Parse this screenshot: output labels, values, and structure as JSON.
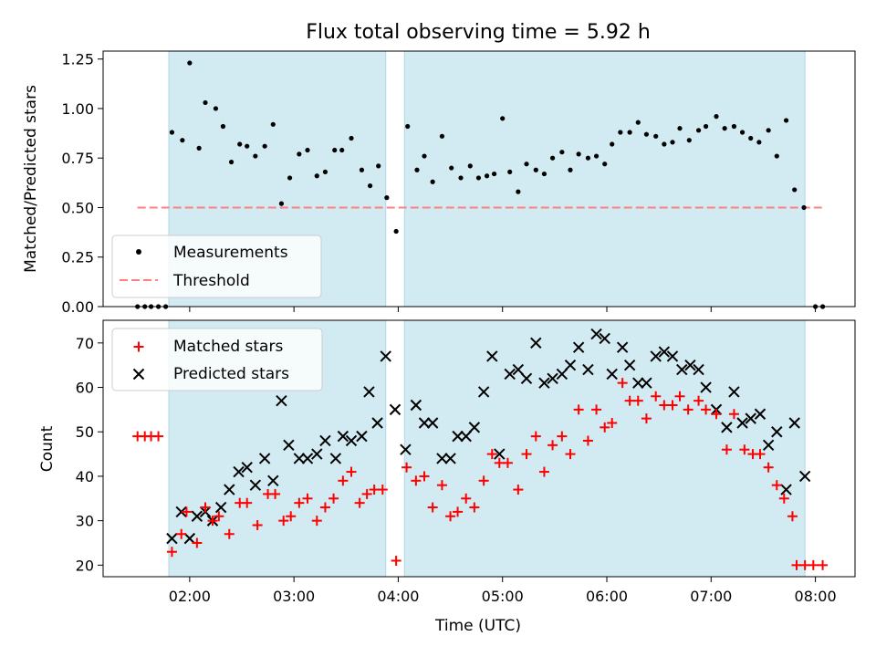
{
  "title": "Flux total observing time = 5.92 h",
  "colors": {
    "span": "#add8e6",
    "measurement": "#000000",
    "threshold": "#ff7f7f",
    "matched": "#ff0000",
    "predicted": "#000000"
  },
  "chart_data": [
    {
      "type": "scatter",
      "ylabel": "Matched/Predicted stars",
      "xlim": [
        1.17,
        8.38
      ],
      "ylim": [
        0,
        1.29
      ],
      "yticks": [
        0,
        0.25,
        0.5,
        0.75,
        1.0,
        1.25
      ],
      "ytick_labels": [
        "0.00",
        "0.25",
        "0.50",
        "0.75",
        "1.00",
        "1.25"
      ],
      "legend": "lower-left",
      "shaded_spans": [
        [
          1.8,
          3.88
        ],
        [
          4.06,
          7.9
        ]
      ],
      "threshold": {
        "name": "Threshold",
        "y": 0.5,
        "x": [
          1.5,
          8.08
        ]
      },
      "series": [
        {
          "name": "Measurements",
          "x": [
            1.5,
            1.57,
            1.63,
            1.7,
            1.77,
            1.83,
            1.93,
            2.0,
            2.09,
            2.15,
            2.25,
            2.32,
            2.4,
            2.48,
            2.55,
            2.63,
            2.72,
            2.8,
            2.88,
            2.96,
            3.05,
            3.13,
            3.22,
            3.3,
            3.39,
            3.46,
            3.55,
            3.65,
            3.73,
            3.81,
            3.89,
            3.98,
            4.09,
            4.18,
            4.25,
            4.33,
            4.42,
            4.51,
            4.6,
            4.69,
            4.77,
            4.85,
            4.92,
            5.0,
            5.07,
            5.15,
            5.23,
            5.32,
            5.4,
            5.48,
            5.57,
            5.65,
            5.73,
            5.82,
            5.9,
            5.98,
            6.05,
            6.13,
            6.22,
            6.3,
            6.38,
            6.47,
            6.55,
            6.63,
            6.7,
            6.79,
            6.88,
            6.95,
            7.05,
            7.13,
            7.22,
            7.3,
            7.38,
            7.46,
            7.55,
            7.63,
            7.72,
            7.8,
            7.89,
            8.0,
            8.07
          ],
          "y": [
            0,
            0,
            0,
            0,
            0,
            0.88,
            0.84,
            1.23,
            0.8,
            1.03,
            1.0,
            0.91,
            0.73,
            0.82,
            0.81,
            0.76,
            0.81,
            0.92,
            0.52,
            0.65,
            0.77,
            0.79,
            0.66,
            0.68,
            0.79,
            0.79,
            0.85,
            0.69,
            0.61,
            0.71,
            0.55,
            0.38,
            0.91,
            0.69,
            0.76,
            0.63,
            0.86,
            0.7,
            0.65,
            0.71,
            0.65,
            0.66,
            0.67,
            0.95,
            0.68,
            0.58,
            0.72,
            0.69,
            0.67,
            0.75,
            0.78,
            0.69,
            0.77,
            0.75,
            0.76,
            0.72,
            0.82,
            0.88,
            0.88,
            0.93,
            0.87,
            0.86,
            0.82,
            0.83,
            0.9,
            0.84,
            0.89,
            0.91,
            0.96,
            0.9,
            0.91,
            0.88,
            0.85,
            0.83,
            0.89,
            0.76,
            0.94,
            0.59,
            0.5,
            0,
            0
          ]
        }
      ]
    },
    {
      "type": "scatter",
      "title": "",
      "xlabel": "Time (UTC)",
      "ylabel": "Count",
      "xlim": [
        1.17,
        8.38
      ],
      "ylim": [
        17.4,
        75.1
      ],
      "xticks": [
        2,
        3,
        4,
        5,
        6,
        7,
        8
      ],
      "xtick_labels": [
        "02:00",
        "03:00",
        "04:00",
        "05:00",
        "06:00",
        "07:00",
        "08:00"
      ],
      "yticks": [
        20,
        30,
        40,
        50,
        60,
        70
      ],
      "ytick_labels": [
        "20",
        "30",
        "40",
        "50",
        "60",
        "70"
      ],
      "legend": "top-left",
      "shaded_spans": [
        [
          1.8,
          3.88
        ],
        [
          4.06,
          7.9
        ]
      ],
      "series": [
        {
          "name": "Matched stars",
          "marker": "plus",
          "x": [
            1.5,
            1.57,
            1.63,
            1.7,
            1.83,
            1.92,
            1.97,
            2.07,
            2.15,
            2.22,
            2.28,
            2.38,
            2.48,
            2.55,
            2.65,
            2.75,
            2.82,
            2.9,
            2.97,
            3.05,
            3.13,
            3.22,
            3.3,
            3.38,
            3.47,
            3.55,
            3.63,
            3.7,
            3.77,
            3.85,
            3.98,
            4.08,
            4.17,
            4.25,
            4.33,
            4.42,
            4.5,
            4.57,
            4.65,
            4.73,
            4.82,
            4.9,
            4.97,
            5.05,
            5.15,
            5.23,
            5.32,
            5.4,
            5.48,
            5.57,
            5.65,
            5.73,
            5.82,
            5.9,
            5.98,
            6.05,
            6.15,
            6.22,
            6.3,
            6.38,
            6.47,
            6.55,
            6.63,
            6.7,
            6.78,
            6.88,
            6.95,
            7.05,
            7.15,
            7.22,
            7.32,
            7.4,
            7.47,
            7.55,
            7.63,
            7.7,
            7.78,
            7.82,
            7.9,
            7.98,
            8.07
          ],
          "y": [
            49,
            49,
            49,
            49,
            23,
            27,
            32,
            25,
            33,
            30,
            31,
            27,
            34,
            34,
            29,
            36,
            36,
            30,
            31,
            34,
            35,
            30,
            33,
            35,
            39,
            41,
            34,
            36,
            37,
            37,
            21,
            42,
            39,
            40,
            33,
            38,
            31,
            32,
            35,
            33,
            39,
            45,
            43,
            43,
            37,
            45,
            49,
            41,
            47,
            49,
            45,
            55,
            48,
            55,
            51,
            52,
            61,
            57,
            57,
            53,
            58,
            56,
            56,
            58,
            55,
            57,
            55,
            54,
            46,
            54,
            46,
            45,
            45,
            42,
            38,
            35,
            31,
            20,
            20,
            20,
            20
          ]
        },
        {
          "name": "Predicted stars",
          "marker": "cross",
          "x": [
            1.83,
            1.92,
            2.0,
            2.07,
            2.15,
            2.22,
            2.3,
            2.38,
            2.47,
            2.55,
            2.63,
            2.72,
            2.8,
            2.88,
            2.95,
            3.05,
            3.13,
            3.22,
            3.3,
            3.4,
            3.47,
            3.55,
            3.65,
            3.72,
            3.8,
            3.88,
            3.97,
            4.07,
            4.17,
            4.25,
            4.33,
            4.42,
            4.5,
            4.57,
            4.65,
            4.73,
            4.82,
            4.9,
            4.97,
            5.07,
            5.15,
            5.23,
            5.32,
            5.4,
            5.48,
            5.57,
            5.65,
            5.73,
            5.82,
            5.9,
            5.98,
            6.05,
            6.15,
            6.22,
            6.3,
            6.38,
            6.47,
            6.55,
            6.63,
            6.72,
            6.8,
            6.88,
            6.95,
            7.05,
            7.15,
            7.22,
            7.3,
            7.38,
            7.47,
            7.55,
            7.63,
            7.72,
            7.8,
            7.9
          ],
          "y": [
            26,
            32,
            26,
            31,
            32,
            30,
            33,
            37,
            41,
            42,
            38,
            44,
            39,
            57,
            47,
            44,
            44,
            45,
            48,
            44,
            49,
            48,
            49,
            59,
            52,
            67,
            55,
            46,
            56,
            52,
            52,
            44,
            44,
            49,
            49,
            51,
            59,
            67,
            45,
            63,
            64,
            62,
            70,
            61,
            62,
            63,
            65,
            69,
            64,
            72,
            71,
            63,
            69,
            65,
            61,
            61,
            67,
            68,
            67,
            64,
            65,
            64,
            60,
            55,
            51,
            59,
            52,
            53,
            54,
            47,
            50,
            37,
            52,
            40
          ]
        }
      ]
    }
  ]
}
